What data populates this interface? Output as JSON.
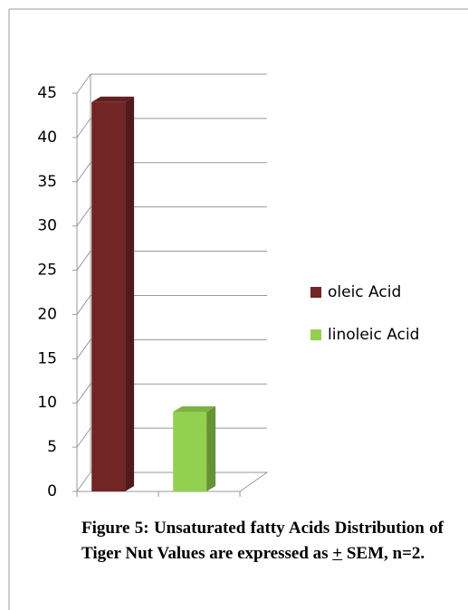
{
  "chart_data": {
    "type": "bar3d",
    "categories": [
      "oleic Acid",
      "linoleic Acid"
    ],
    "values": [
      44,
      9
    ],
    "colors": [
      "#722525",
      "#92d050"
    ],
    "ylim": [
      0,
      45
    ],
    "yticks": [
      0,
      5,
      10,
      15,
      20,
      25,
      30,
      35,
      40,
      45
    ],
    "grid": true,
    "legend": "right",
    "caption": [
      "Figure 5: Unsaturated fatty Acids Distribution of Tiger Nut Values are expressed as ",
      "+",
      " SEM, n=2."
    ]
  }
}
